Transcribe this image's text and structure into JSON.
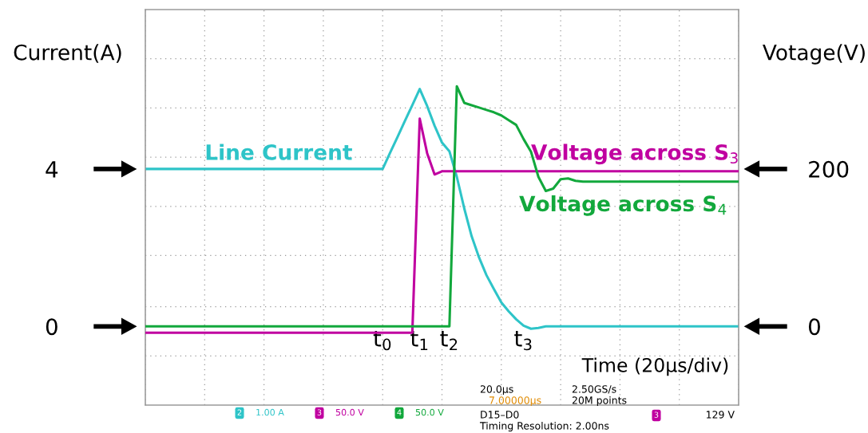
{
  "chart_data": {
    "type": "line",
    "xlabel": "Time (20µs/div)",
    "ylabel": "Current(A)",
    "y2label": "Votage(V)",
    "categories": [
      null,
      null,
      null,
      null,
      null,
      null,
      null,
      null,
      null,
      null,
      null,
      null,
      null,
      null,
      null,
      null,
      null,
      null,
      null,
      null,
      null,
      null,
      null,
      null,
      null,
      null,
      null,
      null,
      null,
      null,
      null,
      null,
      "t$_{0}$",
      null,
      null,
      null,
      null,
      "t$_{1}$",
      null,
      null,
      null,
      "t$_{2}$",
      null,
      null,
      null,
      null,
      null,
      null,
      null,
      null,
      null,
      "t$_{3}$",
      null,
      null,
      null,
      null,
      null,
      null,
      null,
      null,
      null,
      null,
      null,
      null,
      null,
      null,
      null,
      null,
      null,
      null,
      null,
      null,
      null,
      null,
      null,
      null,
      null,
      null,
      null,
      null,
      null
    ],
    "ylim": [
      -2,
      8.05
    ],
    "y2lim": [
      -100,
      402.5
    ],
    "yticks": [
      {
        "value": -0.75,
        "label": null
      },
      {
        "value": 0.5,
        "label": null
      },
      {
        "value": 1.8,
        "label": null
      },
      {
        "value": 3.05,
        "label": null
      },
      {
        "value": 4.3,
        "label": null
      },
      {
        "value": 5.55,
        "label": null
      },
      {
        "value": 6.8,
        "label": null
      },
      0,
      4
    ],
    "y2ticks": [
      0,
      200
    ],
    "grid": true,
    "legend": false,
    "series": [
      {
        "name": "Line Current",
        "color": "#2ec4c8",
        "axis": "y",
        "values": [
          4,
          4,
          4,
          4,
          4,
          4,
          4,
          4,
          4,
          4,
          4,
          4,
          4,
          4,
          4,
          4,
          4,
          4,
          4,
          4,
          4,
          4,
          4,
          4,
          4,
          4,
          4,
          4,
          4,
          4,
          4,
          4,
          4,
          4.41,
          4.81,
          5.22,
          5.62,
          6.03,
          5.6,
          5.1,
          4.67,
          4.45,
          3.8,
          3.0,
          2.29,
          1.75,
          1.3,
          0.95,
          0.61,
          0.38,
          0.18,
          0.02,
          -0.06,
          -0.04,
          0,
          0,
          0,
          0,
          0,
          0,
          0,
          0,
          0,
          0,
          0,
          0,
          0,
          0,
          0,
          0,
          0,
          0,
          0,
          0,
          0,
          0,
          0,
          0,
          0,
          0,
          0
        ]
      },
      {
        "name": "Voltage across S$_{3}$",
        "color": "#c000a0",
        "axis": "y2",
        "values": [
          -8,
          -8,
          -8,
          -8,
          -8,
          -8,
          -8,
          -8,
          -8,
          -8,
          -8,
          -8,
          -8,
          -8,
          -8,
          -8,
          -8,
          -8,
          -8,
          -8,
          -8,
          -8,
          -8,
          -8,
          -8,
          -8,
          -8,
          -8,
          -8,
          -8,
          -8,
          -8,
          -8,
          -8,
          -8,
          -8,
          -8,
          264,
          220,
          193,
          197,
          197,
          197,
          197,
          197,
          197,
          197,
          197,
          197,
          197,
          197,
          197,
          197,
          197,
          197,
          197,
          197,
          197,
          197,
          197,
          197,
          197,
          197,
          197,
          197,
          197,
          197,
          197,
          197,
          197,
          197,
          197,
          197,
          197,
          197,
          197,
          197,
          197,
          197,
          197,
          197
        ]
      },
      {
        "name": "Voltage across S$_{4}$",
        "color": "#12a83c",
        "axis": "y2",
        "values": [
          0,
          0,
          0,
          0,
          0,
          0,
          0,
          0,
          0,
          0,
          0,
          0,
          0,
          0,
          0,
          0,
          0,
          0,
          0,
          0,
          0,
          0,
          0,
          0,
          0,
          0,
          0,
          0,
          0,
          0,
          0,
          0,
          0,
          0,
          0,
          0,
          0,
          0,
          0,
          0,
          0,
          0,
          305,
          284,
          281,
          278,
          275,
          272,
          268,
          262,
          256,
          238,
          222,
          190,
          172,
          175,
          187,
          188,
          185,
          184,
          184,
          184,
          184,
          184,
          184,
          184,
          184,
          184,
          184,
          184,
          184,
          184,
          184,
          184,
          184,
          184,
          184,
          184,
          184,
          184,
          184
        ]
      }
    ],
    "annotations": [
      "2",
      "1.00 A",
      "3",
      "50.0 V",
      "4",
      "50.0 V",
      "20.0µs",
      "7.00000µs",
      "2.50GS/s",
      "20M points",
      "D15–D0",
      "Timing Resolution: 2.00ns",
      "3",
      "129 V"
    ]
  }
}
